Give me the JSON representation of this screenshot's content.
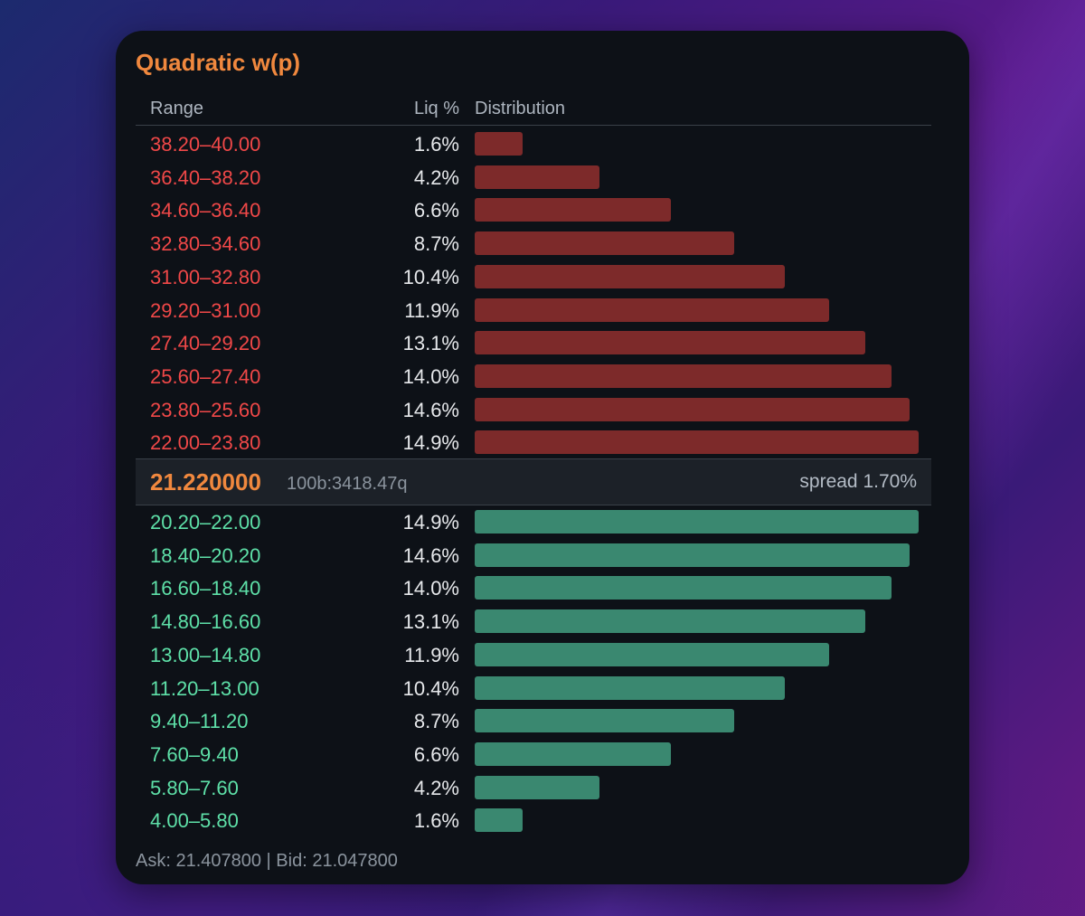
{
  "panel": {
    "title": "Quadratic w(p)",
    "headers": {
      "range": "Range",
      "liq": "Liq %",
      "distribution": "Distribution"
    },
    "colors": {
      "title": "#f0883e",
      "ask_text": "#f04848",
      "ask_bar": "#7d2a2a",
      "bid_text": "#5ee0a8",
      "bid_bar": "#3a8870"
    },
    "max_liq_percent": 14.9,
    "ask_rows": [
      {
        "range": "38.20–40.00",
        "liq": "1.6%",
        "value": 1.6
      },
      {
        "range": "36.40–38.20",
        "liq": "4.2%",
        "value": 4.2
      },
      {
        "range": "34.60–36.40",
        "liq": "6.6%",
        "value": 6.6
      },
      {
        "range": "32.80–34.60",
        "liq": "8.7%",
        "value": 8.7
      },
      {
        "range": "31.00–32.80",
        "liq": "10.4%",
        "value": 10.4
      },
      {
        "range": "29.20–31.00",
        "liq": "11.9%",
        "value": 11.9
      },
      {
        "range": "27.40–29.20",
        "liq": "13.1%",
        "value": 13.1
      },
      {
        "range": "25.60–27.40",
        "liq": "14.0%",
        "value": 14.0
      },
      {
        "range": "23.80–25.60",
        "liq": "14.6%",
        "value": 14.6
      },
      {
        "range": "22.00–23.80",
        "liq": "14.9%",
        "value": 14.9
      }
    ],
    "mid": {
      "price": "21.220000",
      "pool": "100b:3418.47q",
      "spread": "spread 1.70%"
    },
    "bid_rows": [
      {
        "range": "20.20–22.00",
        "liq": "14.9%",
        "value": 14.9
      },
      {
        "range": "18.40–20.20",
        "liq": "14.6%",
        "value": 14.6
      },
      {
        "range": "16.60–18.40",
        "liq": "14.0%",
        "value": 14.0
      },
      {
        "range": "14.80–16.60",
        "liq": "13.1%",
        "value": 13.1
      },
      {
        "range": "13.00–14.80",
        "liq": "11.9%",
        "value": 11.9
      },
      {
        "range": "11.20–13.00",
        "liq": "10.4%",
        "value": 10.4
      },
      {
        "range": "9.40–11.20",
        "liq": "8.7%",
        "value": 8.7
      },
      {
        "range": "7.60–9.40",
        "liq": "6.6%",
        "value": 6.6
      },
      {
        "range": "5.80–7.60",
        "liq": "4.2%",
        "value": 4.2
      },
      {
        "range": "4.00–5.80",
        "liq": "1.6%",
        "value": 1.6
      }
    ],
    "footer": "Ask: 21.407800 | Bid: 21.047800"
  }
}
